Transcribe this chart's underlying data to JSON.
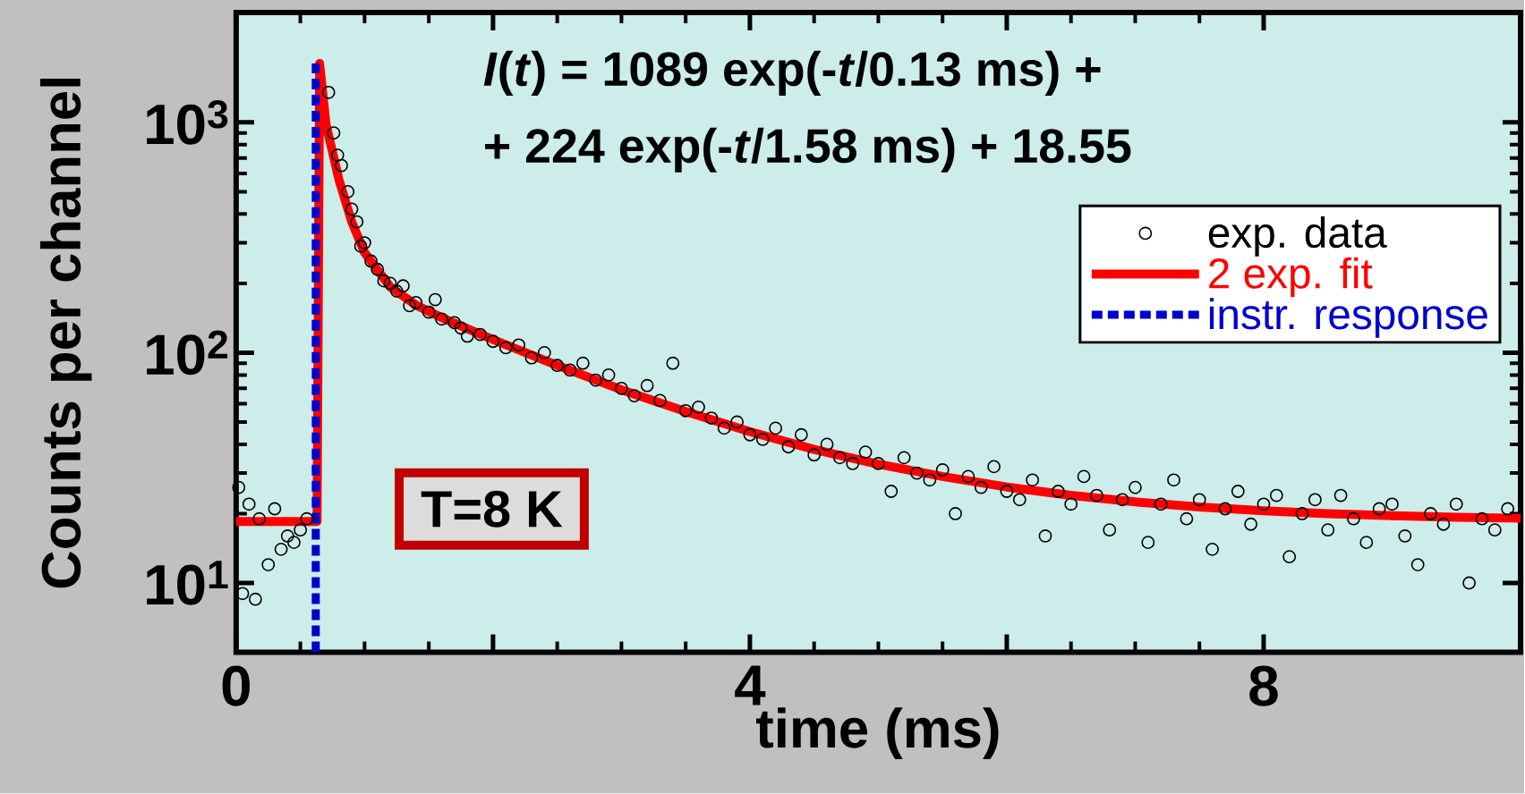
{
  "chart_data": {
    "type": "scatter",
    "xlabel": "time (ms)",
    "ylabel": "Counts per channel",
    "log": "y",
    "xlim": [
      0,
      10
    ],
    "ylim": [
      5,
      3000
    ],
    "xticks": [
      0,
      {
        "value": 2,
        "label": null
      },
      4,
      {
        "value": 6,
        "label": null
      },
      8
    ],
    "yticks": [
      {
        "value": 10,
        "label": "10$^{1}$"
      },
      {
        "value": 100,
        "label": "10$^{2}$"
      },
      {
        "value": 1000,
        "label": "10$^{3}$"
      }
    ],
    "legend": "top right",
    "annotations": [
      "*I*(*t*) = 1089 exp(-*t*/0.13 ms) +",
      "+ 224 exp(-*t*/1.58 ms) + 18.55",
      "T=8 K"
    ],
    "series": [
      {
        "name": "exp. data",
        "color": "#000000",
        "marker": "circle",
        "x": [
          0.02,
          0.05,
          0.1,
          0.15,
          0.18,
          0.25,
          0.3,
          0.35,
          0.4,
          0.45,
          0.5,
          0.55,
          0.72,
          0.76,
          0.79,
          0.82,
          0.87,
          0.9,
          0.94,
          0.97,
          1.0,
          1.05,
          1.1,
          1.15,
          1.2,
          1.25,
          1.3,
          1.35,
          1.4,
          1.5,
          1.55,
          1.6,
          1.7,
          1.75,
          1.8,
          1.9,
          2.0,
          2.1,
          2.2,
          2.3,
          2.4,
          2.5,
          2.6,
          2.7,
          2.8,
          2.9,
          3.0,
          3.1,
          3.2,
          3.3,
          3.4,
          3.5,
          3.6,
          3.7,
          3.8,
          3.9,
          4.0,
          4.1,
          4.2,
          4.3,
          4.4,
          4.5,
          4.6,
          4.7,
          4.8,
          4.9,
          5.0,
          5.1,
          5.2,
          5.3,
          5.4,
          5.5,
          5.6,
          5.7,
          5.8,
          5.9,
          6.0,
          6.1,
          6.2,
          6.3,
          6.4,
          6.5,
          6.6,
          6.7,
          6.8,
          6.9,
          7.0,
          7.1,
          7.2,
          7.3,
          7.4,
          7.5,
          7.6,
          7.7,
          7.8,
          7.9,
          8.0,
          8.1,
          8.2,
          8.3,
          8.4,
          8.5,
          8.6,
          8.7,
          8.8,
          8.9,
          9.0,
          9.1,
          9.2,
          9.3,
          9.4,
          9.5,
          9.6,
          9.7,
          9.8,
          9.9
        ],
        "values": [
          26,
          9,
          22,
          8.5,
          19,
          12,
          21,
          14,
          16,
          15,
          17,
          19,
          1350,
          900,
          720,
          650,
          500,
          420,
          370,
          290,
          300,
          250,
          230,
          205,
          200,
          185,
          195,
          160,
          165,
          150,
          170,
          140,
          135,
          128,
          118,
          120,
          112,
          105,
          108,
          95,
          100,
          88,
          84,
          90,
          76,
          80,
          70,
          65,
          72,
          62,
          90,
          56,
          58,
          52,
          47,
          50,
          44,
          42,
          47,
          39,
          44,
          36,
          40,
          35,
          33,
          37,
          33,
          25,
          35,
          30,
          28,
          31,
          20,
          29,
          26,
          32,
          25,
          23,
          28,
          16,
          25,
          22,
          29,
          24,
          17,
          23,
          26,
          15,
          22,
          28,
          19,
          23,
          14,
          21,
          25,
          18,
          22,
          24,
          13,
          20,
          23,
          17,
          24,
          19,
          15,
          21,
          22,
          16,
          12,
          20,
          18,
          22,
          10,
          19,
          17,
          21
        ]
      },
      {
        "name": "2 exp. fit",
        "type": "line",
        "color": "#ff0000",
        "line_style": "solid",
        "marker": "none",
        "x": [
          0,
          0.63,
          0.65,
          0.7,
          0.8,
          0.9,
          1.0,
          1.2,
          1.4,
          1.6,
          1.8,
          2.0,
          2.5,
          3.0,
          3.5,
          4.0,
          4.5,
          5.0,
          5.5,
          6.0,
          6.5,
          7.0,
          7.5,
          8.0,
          8.5,
          9.0,
          9.5,
          10.0
        ],
        "values": [
          18.5,
          18.5,
          1800,
          980,
          565,
          370,
          272,
          193,
          161,
          142,
          127,
          114,
          88,
          69,
          55.5,
          45.4,
          38,
          32.8,
          29,
          26.1,
          24,
          22.5,
          21.4,
          20.6,
          20,
          19.6,
          19.3,
          19.1
        ]
      },
      {
        "name": "instr. response",
        "type": "line",
        "color": "#0000cc",
        "line_style": "dashed",
        "marker": "none",
        "x": [
          0.62,
          0.62
        ],
        "values": [
          5,
          1800
        ]
      }
    ]
  }
}
